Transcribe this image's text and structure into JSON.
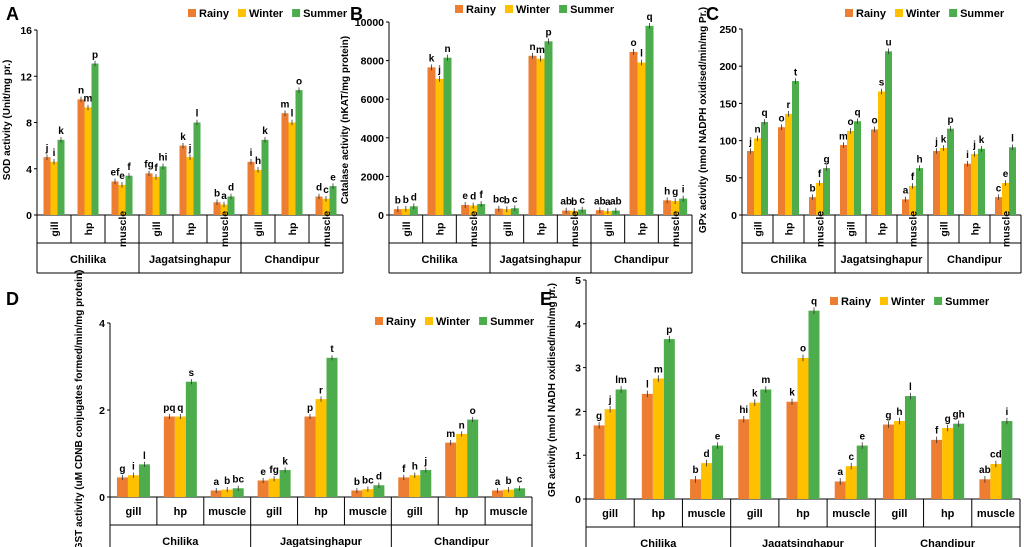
{
  "colors": {
    "rainy": "#ED7D31",
    "winter": "#FFC000",
    "summer": "#4DAD4D",
    "axis": "#000000"
  },
  "chart_data": [
    {
      "panel": "A",
      "type": "bar",
      "ylabel": "SOD activity (Unit/mg pr.)",
      "ylim": [
        0,
        16
      ],
      "yticks": [
        "0",
        "4",
        "8",
        "12",
        "16"
      ],
      "legend": [
        "Rainy",
        "Winter",
        "Summer"
      ],
      "legend_position": "top-right",
      "sites": [
        "Chilika",
        "Jagatsinghapur",
        "Chandipur"
      ],
      "tissues": [
        "gill",
        "hp",
        "muscle"
      ],
      "series": [
        {
          "name": "Rainy",
          "values": [
            5.0,
            10.0,
            2.9,
            3.6,
            6.0,
            1.1,
            4.6,
            8.8,
            1.6
          ]
        },
        {
          "name": "Winter",
          "values": [
            4.6,
            9.3,
            2.6,
            3.3,
            5.0,
            0.9,
            3.9,
            8.0,
            1.4
          ]
        },
        {
          "name": "Summer",
          "values": [
            6.5,
            13.1,
            3.4,
            4.2,
            8.0,
            1.6,
            6.5,
            10.8,
            2.5
          ]
        }
      ],
      "letters": [
        [
          "j",
          "n",
          "ef",
          "fg",
          "k",
          "b",
          "i",
          "m",
          "d"
        ],
        [
          "i",
          "m",
          "e",
          "f",
          "j",
          "a",
          "h",
          "l",
          "c"
        ],
        [
          "k",
          "p",
          "f",
          "hi",
          "l",
          "d",
          "k",
          "o",
          "e"
        ]
      ]
    },
    {
      "panel": "B",
      "type": "bar",
      "ylabel": "Catalase activity (nKAT/mg protein)",
      "ylim": [
        0,
        10000
      ],
      "yticks": [
        "0",
        "2000",
        "4000",
        "6000",
        "8000",
        "10000"
      ],
      "legend": [
        "Rainy",
        "Winter",
        "Summer"
      ],
      "legend_position": "top",
      "sites": [
        "Chilika",
        "Jagatsinghapur",
        "Chandipur"
      ],
      "tissues": [
        "gill",
        "hp",
        "muscle"
      ],
      "series": [
        {
          "name": "Rainy",
          "values": [
            300,
            7650,
            520,
            330,
            8250,
            230,
            250,
            8450,
            760
          ]
        },
        {
          "name": "Winter",
          "values": [
            320,
            7050,
            490,
            300,
            8100,
            220,
            200,
            7900,
            720
          ]
        },
        {
          "name": "Summer",
          "values": [
            450,
            8150,
            570,
            350,
            9000,
            280,
            230,
            9800,
            850
          ]
        }
      ],
      "letters": [
        [
          "b",
          "k",
          "e",
          "bc",
          "n",
          "ab",
          "ab",
          "o",
          "h"
        ],
        [
          "b",
          "j",
          "d",
          "b",
          "m",
          "b",
          "a",
          "l",
          "g"
        ],
        [
          "d",
          "n",
          "f",
          "c",
          "p",
          "c",
          "ab",
          "q",
          "i"
        ]
      ]
    },
    {
      "panel": "C",
      "type": "bar",
      "ylabel": "GPx activity (nmol NADPH oxidised/min/mg Pr.)",
      "ylim": [
        0,
        250
      ],
      "yticks": [
        "0",
        "50",
        "100",
        "150",
        "200",
        "250"
      ],
      "legend": [
        "Rainy",
        "Winter",
        "Summer"
      ],
      "legend_position": "top-right",
      "sites": [
        "Chilika",
        "Jagatsinghapur",
        "Chandipur"
      ],
      "tissues": [
        "gill",
        "hp",
        "muscle"
      ],
      "series": [
        {
          "name": "Rainy",
          "values": [
            86,
            118,
            24,
            94,
            115,
            21,
            86,
            69,
            24
          ]
        },
        {
          "name": "Winter",
          "values": [
            103,
            136,
            43,
            113,
            166,
            39,
            90,
            82,
            43
          ]
        },
        {
          "name": "Summer",
          "values": [
            125,
            180,
            63,
            126,
            220,
            63,
            116,
            89,
            91
          ]
        }
      ],
      "letters": [
        [
          "j",
          "o",
          "b",
          "m",
          "o",
          "a",
          "j",
          "i",
          "c"
        ],
        [
          "n",
          "r",
          "f",
          "o",
          "s",
          "f",
          "k",
          "j",
          "e"
        ],
        [
          "q",
          "t",
          "g",
          "q",
          "u",
          "h",
          "p",
          "k",
          "l"
        ]
      ]
    },
    {
      "panel": "D",
      "type": "bar",
      "ylabel": "GST activity (uM CDNB conjugates formed/min/mg protein)",
      "ylim": [
        0,
        4
      ],
      "yticks": [
        "0",
        "2",
        "4"
      ],
      "legend": [
        "Rainy",
        "Winter",
        "Summer"
      ],
      "legend_position": "top-right",
      "sites": [
        "Chilika",
        "Jagatsinghapur",
        "Chandipur"
      ],
      "tissues": [
        "gill",
        "hp",
        "muscle"
      ],
      "series": [
        {
          "name": "Rainy",
          "values": [
            0.45,
            1.85,
            0.15,
            0.38,
            1.85,
            0.15,
            0.45,
            1.25,
            0.15
          ]
        },
        {
          "name": "Winter",
          "values": [
            0.5,
            1.85,
            0.17,
            0.42,
            2.25,
            0.18,
            0.5,
            1.45,
            0.17
          ]
        },
        {
          "name": "Summer",
          "values": [
            0.75,
            2.65,
            0.2,
            0.62,
            3.2,
            0.27,
            0.62,
            1.78,
            0.2
          ]
        }
      ],
      "letters": [
        [
          "g",
          "pq",
          "a",
          "e",
          "p",
          "b",
          "f",
          "m",
          "a"
        ],
        [
          "i",
          "q",
          "b",
          "fg",
          "r",
          "bc",
          "h",
          "n",
          "b"
        ],
        [
          "l",
          "s",
          "bc",
          "k",
          "t",
          "d",
          "j",
          "o",
          "c"
        ]
      ]
    },
    {
      "panel": "E",
      "type": "bar",
      "ylabel": "GR activity (nmol NADH oxidised/min/mg pr.)",
      "ylim": [
        0,
        5
      ],
      "yticks": [
        "0",
        "1",
        "2",
        "3",
        "4",
        "5"
      ],
      "legend": [
        "Rainy",
        "Winter",
        "Summer"
      ],
      "legend_position": "top-right",
      "sites": [
        "Chilika",
        "Jagatsinghapur",
        "Chandipur"
      ],
      "tissues": [
        "gill",
        "hp",
        "muscle"
      ],
      "series": [
        {
          "name": "Rainy",
          "values": [
            1.68,
            2.4,
            0.45,
            1.82,
            2.22,
            0.4,
            1.7,
            1.35,
            0.45
          ]
        },
        {
          "name": "Winter",
          "values": [
            2.05,
            2.75,
            0.82,
            2.2,
            3.22,
            0.75,
            1.78,
            1.62,
            0.8
          ]
        },
        {
          "name": "Summer",
          "values": [
            2.5,
            3.65,
            1.22,
            2.5,
            4.3,
            1.22,
            2.35,
            1.72,
            1.78
          ]
        }
      ],
      "letters": [
        [
          "g",
          "l",
          "b",
          "hi",
          "k",
          "a",
          "g",
          "f",
          "ab"
        ],
        [
          "j",
          "m",
          "d",
          "k",
          "o",
          "c",
          "h",
          "g",
          "cd"
        ],
        [
          "lm",
          "p",
          "e",
          "m",
          "q",
          "e",
          "l",
          "gh",
          "i"
        ]
      ]
    }
  ]
}
